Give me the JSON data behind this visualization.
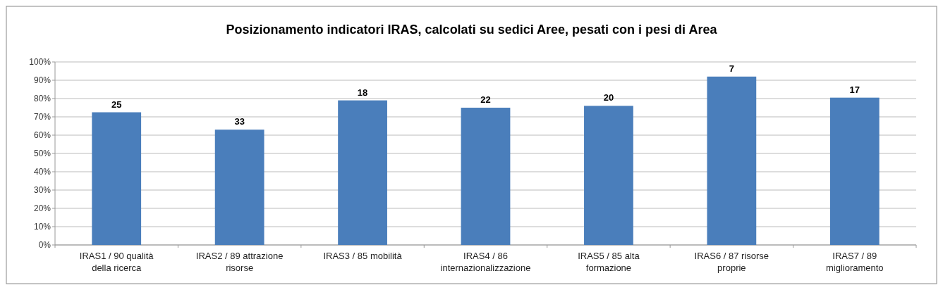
{
  "chart_data": {
    "type": "bar",
    "title": "Posizionamento indicatori IRAS, calcolati su sedici Aree, pesati con i pesi di Area",
    "categories": [
      "IRAS1 / 90 qualità della ricerca",
      "IRAS2 / 89 attrazione risorse",
      "IRAS3 / 85 mobilità",
      "IRAS4 / 86 internazionalizzazione",
      "IRAS5 / 85 alta formazione",
      "IRAS6 / 87 risorse proprie",
      "IRAS7 / 89 miglioramento"
    ],
    "values": [
      72.5,
      63,
      79,
      75,
      76,
      92,
      80.5
    ],
    "annotations": [
      {
        "text": "25",
        "x": "IRAS1 / 90 qualità della ricerca",
        "y": 72.5
      },
      {
        "text": "33",
        "x": "IRAS2 / 89 attrazione risorse",
        "y": 63
      },
      {
        "text": "18",
        "x": "IRAS3 / 85 mobilità",
        "y": 79
      },
      {
        "text": "22",
        "x": "IRAS4 / 86 internazionalizzazione",
        "y": 75
      },
      {
        "text": "20",
        "x": "IRAS5 / 85 alta formazione",
        "y": 76
      },
      {
        "text": "7",
        "x": "IRAS6 / 87 risorse proprie",
        "y": 92
      },
      {
        "text": "17",
        "x": "IRAS7 / 89 miglioramento",
        "y": 80.5
      }
    ],
    "color": "#4a7ebb",
    "ylim": [
      0,
      100
    ],
    "yticks": [
      {
        "value": 0,
        "label": "0%"
      },
      {
        "value": 10,
        "label": "10%"
      },
      {
        "value": 20,
        "label": "20%"
      },
      {
        "value": 30,
        "label": "30%"
      },
      {
        "value": 40,
        "label": "40%"
      },
      {
        "value": 50,
        "label": "50%"
      },
      {
        "value": 60,
        "label": "60%"
      },
      {
        "value": 70,
        "label": "70%"
      },
      {
        "value": 80,
        "label": "80%"
      },
      {
        "value": 90,
        "label": "90%"
      },
      {
        "value": 100,
        "label": "100%"
      }
    ],
    "grid": "y"
  }
}
